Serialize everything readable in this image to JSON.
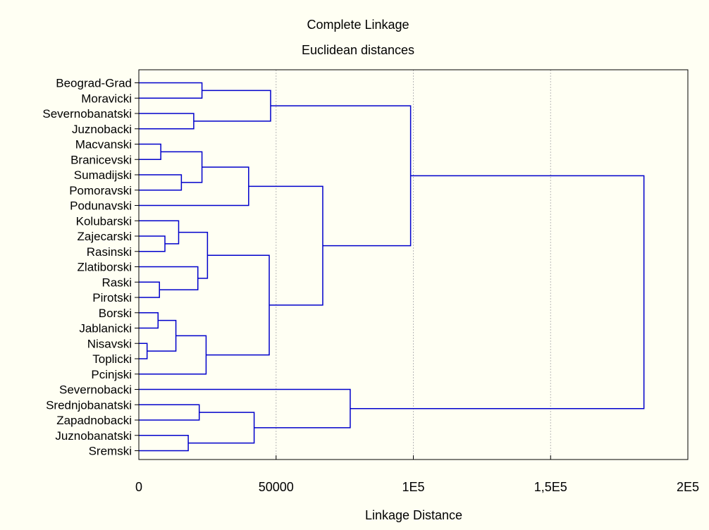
{
  "chart_data": {
    "type": "dendrogram",
    "title": "Complete Linkage",
    "subtitle": "Euclidean distances",
    "xlabel": "Linkage Distance",
    "xlim": [
      0,
      200000
    ],
    "xticks": [
      {
        "value": 0,
        "label": "0"
      },
      {
        "value": 50000,
        "label": "50000"
      },
      {
        "value": 100000,
        "label": "1E5"
      },
      {
        "value": 150000,
        "label": "1,5E5"
      },
      {
        "value": 200000,
        "label": "2E5"
      }
    ],
    "grid": "vertical dotted",
    "line_color": "#0000cc",
    "leaves": [
      "Beograd-Grad",
      "Moravicki",
      "Severnobanatski",
      "Juznobacki",
      "Macvanski",
      "Branicevski",
      "Sumadijski",
      "Pomoravski",
      "Podunavski",
      "Kolubarski",
      "Zajecarski",
      "Rasinski",
      "Zlatiborski",
      "Raski",
      "Pirotski",
      "Borski",
      "Jablanicki",
      "Nisavski",
      "Toplicki",
      "Pcinjski",
      "Severnobacki",
      "Srednjobanatski",
      "Zapadnobacki",
      "Juznobanatski",
      "Sremski"
    ],
    "merges": [
      {
        "left": "L0",
        "right": "L1",
        "distance": 23000
      },
      {
        "left": "L2",
        "right": "L3",
        "distance": 20000
      },
      {
        "left": "M0",
        "right": "M1",
        "distance": 48000
      },
      {
        "left": "L4",
        "right": "L5",
        "distance": 8000
      },
      {
        "left": "L6",
        "right": "L7",
        "distance": 15500
      },
      {
        "left": "M3",
        "right": "M4",
        "distance": 23000
      },
      {
        "left": "M5",
        "right": "L8",
        "distance": 40000
      },
      {
        "left": "L10",
        "right": "L11",
        "distance": 9500
      },
      {
        "left": "L9",
        "right": "M7",
        "distance": 14500
      },
      {
        "left": "L13",
        "right": "L14",
        "distance": 7500
      },
      {
        "left": "L12",
        "right": "M9",
        "distance": 21500
      },
      {
        "left": "M8",
        "right": "M10",
        "distance": 25000
      },
      {
        "left": "L15",
        "right": "L16",
        "distance": 7000
      },
      {
        "left": "L17",
        "right": "L18",
        "distance": 3000
      },
      {
        "left": "M12",
        "right": "M13",
        "distance": 13500
      },
      {
        "left": "M14",
        "right": "L19",
        "distance": 24500
      },
      {
        "left": "M11",
        "right": "M15",
        "distance": 47500
      },
      {
        "left": "M6",
        "right": "M16",
        "distance": 67000
      },
      {
        "left": "M2",
        "right": "M17",
        "distance": 99000
      },
      {
        "left": "L21",
        "right": "L22",
        "distance": 22000
      },
      {
        "left": "L23",
        "right": "L24",
        "distance": 18000
      },
      {
        "left": "M19",
        "right": "M20",
        "distance": 42000
      },
      {
        "left": "L20",
        "right": "M21",
        "distance": 77000
      },
      {
        "left": "M18",
        "right": "M22",
        "distance": 184000
      }
    ]
  }
}
